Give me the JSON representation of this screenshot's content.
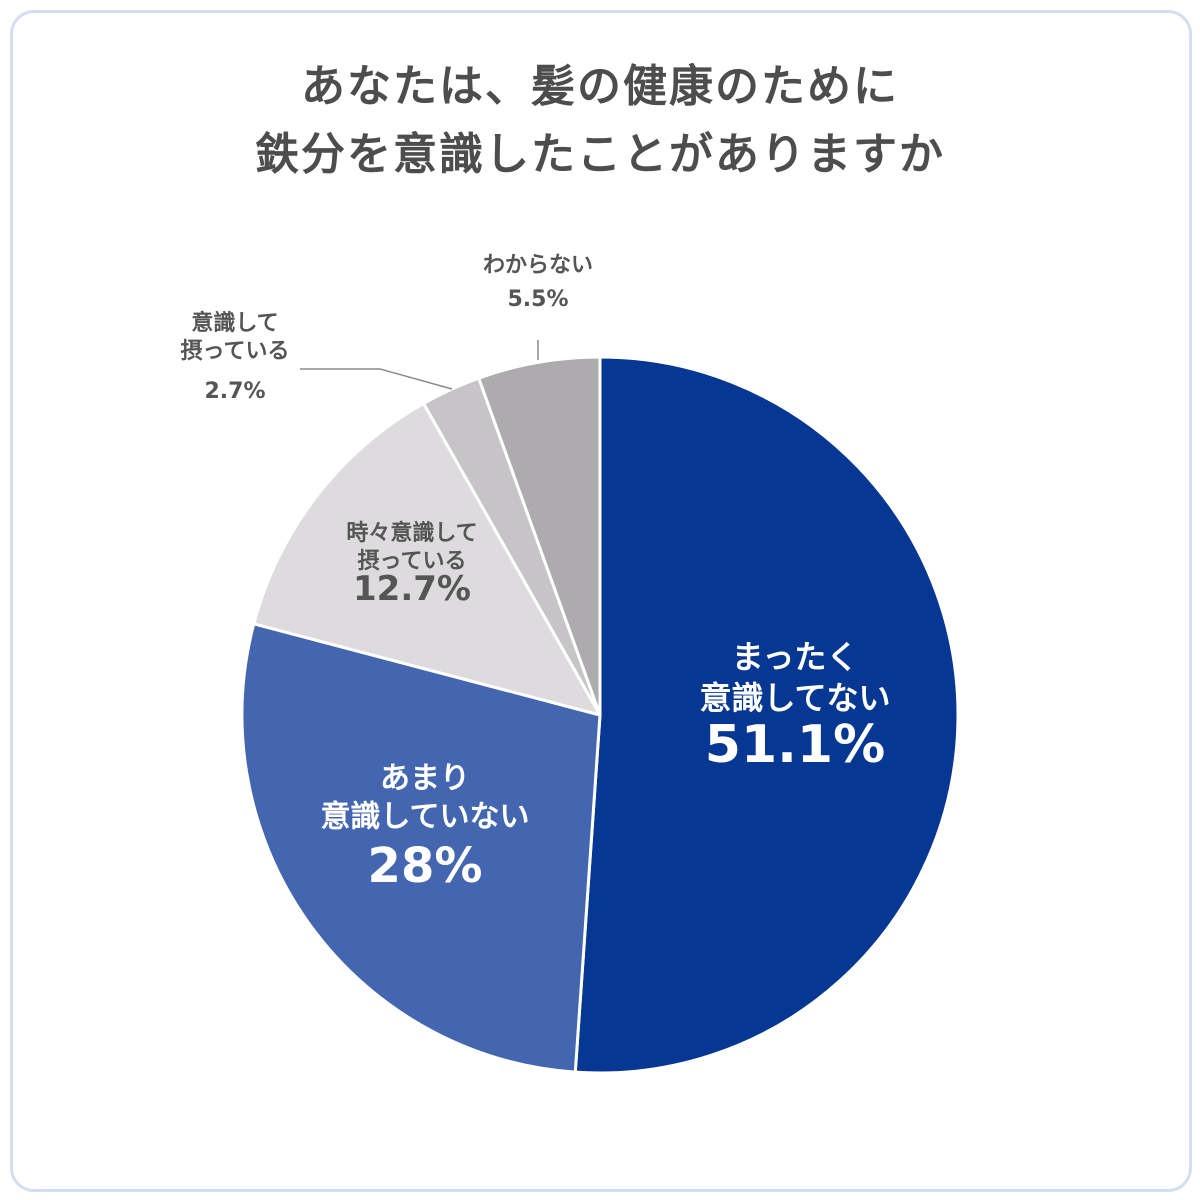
{
  "title_lines": [
    "あなたは、髪の健康のために",
    "鉄分を意識したことがありますか"
  ],
  "chart_data": {
    "type": "pie",
    "title": "あなたは、髪の健康のために 鉄分を意識したことがありますか",
    "start": "12 o'clock",
    "direction": "clockwise",
    "slices": [
      {
        "label_lines": [
          "まったく",
          "意識してない"
        ],
        "value": 51.1,
        "value_label": "51.1%",
        "color": "#063792",
        "text_color": "#ffffff",
        "label_style": "inside-large"
      },
      {
        "label_lines": [
          "あまり",
          "意識していない"
        ],
        "value": 28.0,
        "value_label": "28%",
        "color": "#4466b0",
        "text_color": "#ffffff",
        "label_style": "inside-large"
      },
      {
        "label_lines": [
          "時々意識して",
          "摂っている"
        ],
        "value": 12.7,
        "value_label": "12.7%",
        "color": "#dddbdd",
        "text_color": "#555555",
        "label_style": "inside-small"
      },
      {
        "label_lines": [
          "意識して",
          "摂っている"
        ],
        "value": 2.7,
        "value_label": "2.7%",
        "color": "#c6c4c6",
        "text_color": "#555555",
        "label_style": "outside-leader"
      },
      {
        "label_lines": [
          "わからない"
        ],
        "value": 5.5,
        "value_label": "5.5%",
        "color": "#aeabae",
        "text_color": "#555555",
        "label_style": "outside-leader"
      }
    ]
  }
}
